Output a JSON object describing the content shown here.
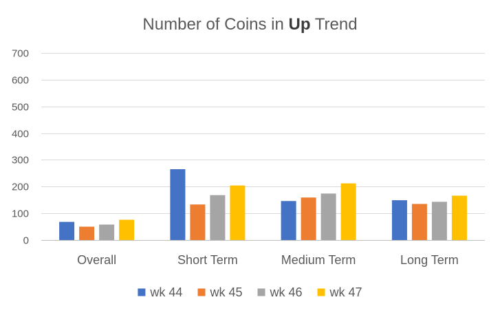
{
  "chart_data": {
    "type": "bar",
    "title_prefix": "Number of Coins in ",
    "title_emphasis": "Up",
    "title_suffix": " Trend",
    "categories": [
      "Overall",
      "Short Term",
      "Medium Term",
      "Long Term"
    ],
    "series": [
      {
        "name": "wk 44",
        "color": "#4472c4",
        "values": [
          68,
          265,
          146,
          149
        ]
      },
      {
        "name": "wk 45",
        "color": "#ed7d31",
        "values": [
          50,
          133,
          159,
          135
        ]
      },
      {
        "name": "wk 46",
        "color": "#a5a5a5",
        "values": [
          58,
          168,
          174,
          143
        ]
      },
      {
        "name": "wk 47",
        "color": "#ffc000",
        "values": [
          76,
          204,
          212,
          166
        ]
      }
    ],
    "ylim": [
      0,
      700
    ],
    "yticks": [
      0,
      100,
      200,
      300,
      400,
      500,
      600,
      700
    ],
    "grid": true,
    "legend_position": "bottom",
    "xlabel": "",
    "ylabel": ""
  }
}
